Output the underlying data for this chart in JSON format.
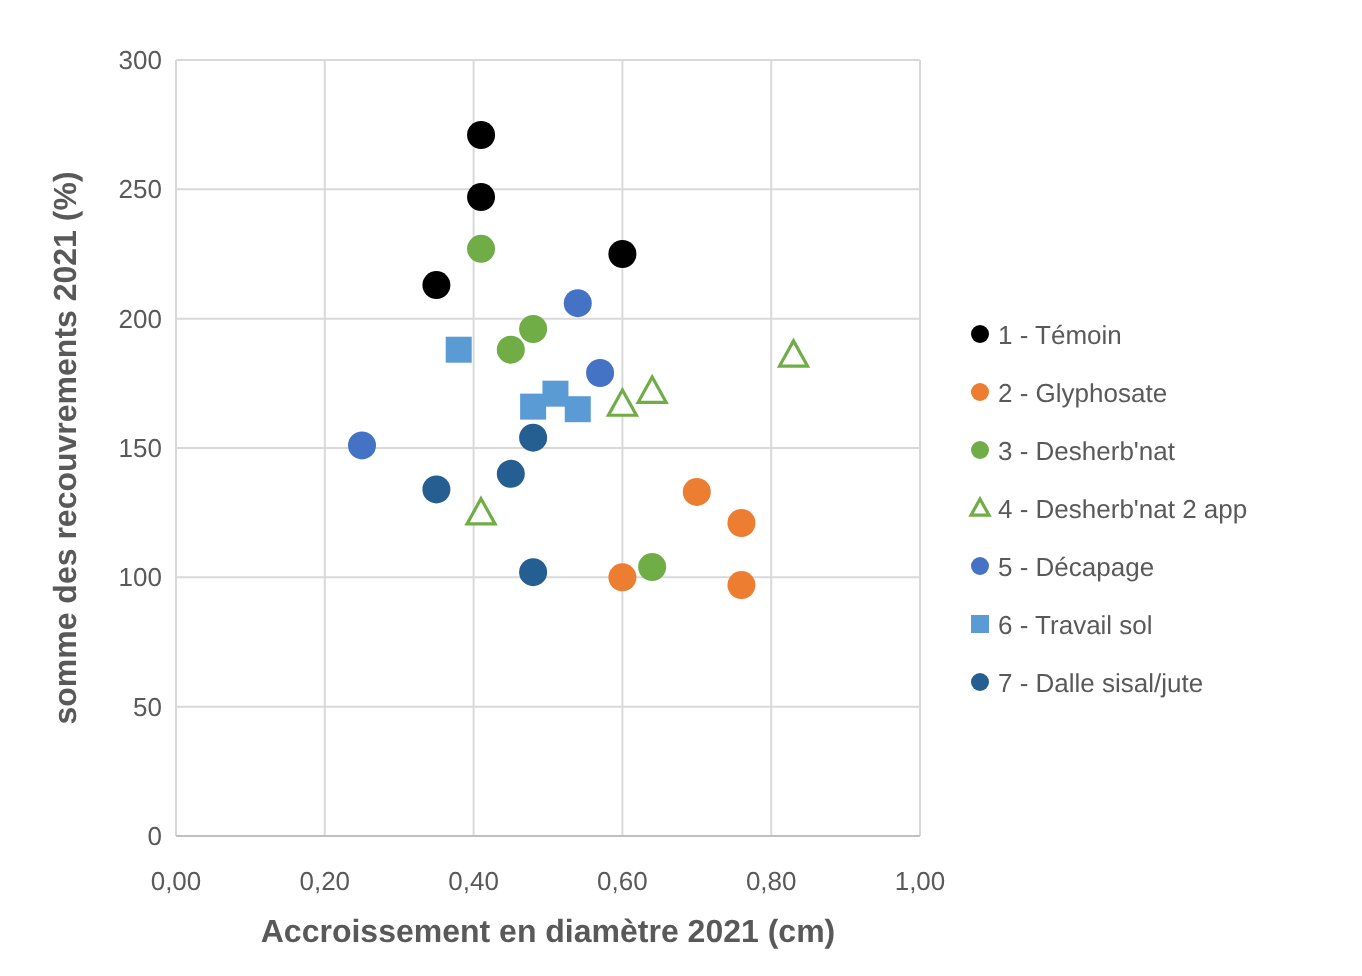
{
  "chart_data": {
    "type": "scatter",
    "xlabel": "Accroissement en diamètre 2021 (cm)",
    "ylabel": "somme des recouvrements 2021 (%)",
    "xlim": [
      0,
      1
    ],
    "xticks": [
      {
        "value": 0,
        "label": "0,00"
      },
      {
        "value": 0.2,
        "label": "0,20"
      },
      {
        "value": 0.4,
        "label": "0,40"
      },
      {
        "value": 0.6,
        "label": "0,60"
      },
      {
        "value": 0.8,
        "label": "0,80"
      },
      {
        "value": 1,
        "label": "1,00"
      }
    ],
    "ylim": [
      0,
      300
    ],
    "yticks": [
      0,
      50,
      100,
      150,
      200,
      250,
      300
    ],
    "grid": true,
    "legend": "right",
    "series": [
      {
        "name": "1 - Témoin",
        "color": "#000000",
        "marker": "circle",
        "x": [
          0.41,
          0.41,
          0.35,
          0.6
        ],
        "values": [
          271,
          247,
          213,
          225
        ]
      },
      {
        "name": "2 - Glyphosate",
        "color": "#ed7d31",
        "marker": "circle",
        "x": [
          0.6,
          0.7,
          0.76,
          0.76
        ],
        "values": [
          100,
          133,
          121,
          97
        ]
      },
      {
        "name": "3 - Desherb'nat",
        "color": "#70ad47",
        "marker": "circle",
        "x": [
          0.41,
          0.45,
          0.48,
          0.64
        ],
        "values": [
          227,
          188,
          196,
          104
        ]
      },
      {
        "name": "4 - Desherb'nat 2 app",
        "color": "#70ad47",
        "marker": "triangle",
        "x": [
          0.41,
          0.6,
          0.64,
          0.83
        ],
        "values": [
          125,
          167,
          172,
          186
        ]
      },
      {
        "name": "5 - Décapage",
        "color": "#4472c4",
        "marker": "circle",
        "x": [
          0.25,
          0.54,
          0.57
        ],
        "values": [
          151,
          206,
          179
        ]
      },
      {
        "name": "6 - Travail sol",
        "color": "#5b9bd5",
        "marker": "square",
        "x": [
          0.38,
          0.48,
          0.51,
          0.54
        ],
        "values": [
          188,
          166,
          171,
          165
        ]
      },
      {
        "name": "7 - Dalle sisal/jute",
        "color": "#255e91",
        "marker": "circle",
        "x": [
          0.35,
          0.45,
          0.48,
          0.48
        ],
        "values": [
          134,
          140,
          154,
          102
        ]
      }
    ]
  }
}
